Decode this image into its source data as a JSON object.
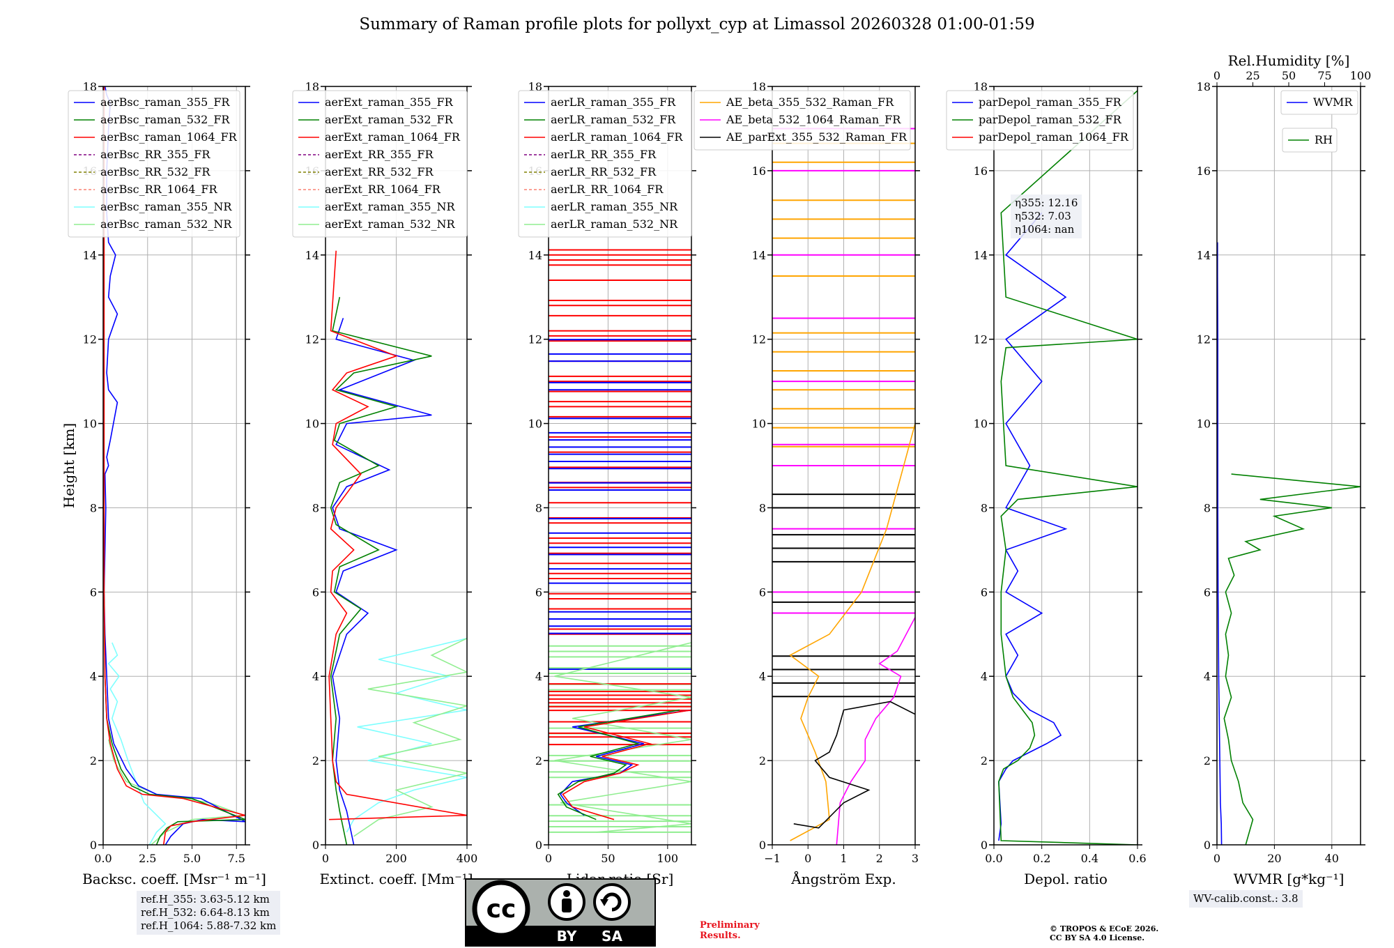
{
  "title": "Summary of Raman profile plots for pollyxt_cyp at Limassol 20260328 01:00-01:59",
  "height_label": "Height [km]",
  "ref_heights": [
    "ref.H_355: 3.63-5.12 km",
    "ref.H_532: 6.64-8.13 km",
    "ref.H_1064: 5.88-7.32 km"
  ],
  "wv_calib": "WV-calib.const.: 3.8",
  "eta": [
    "η355: 12.16",
    "η532: 7.03",
    "η1064: nan"
  ],
  "preliminary": [
    "Preliminary",
    "Results."
  ],
  "copyright": [
    "© TROPOS & ECoE 2026.",
    "CC BY SA 4.0 License."
  ],
  "license": {
    "cc": "cc",
    "by": "BY",
    "sa": "SA"
  },
  "colors": {
    "blue": "#0000ff",
    "green": "#008000",
    "red": "#ff0000",
    "purple": "#800080",
    "olive": "#808000",
    "salmon": "#fa8072",
    "cyan": "#7fffff",
    "lightgreen": "#90ee90",
    "orange": "#ffa500",
    "magenta": "#ff00ff",
    "black": "#000000"
  },
  "chart_data": [
    {
      "type": "line",
      "name": "backscatter",
      "xlabel": "Backsc. coeff. [Msr⁻¹ m⁻¹]",
      "ylabel": "Height [km]",
      "xlim": [
        0,
        8
      ],
      "ylim": [
        0,
        18
      ],
      "xticks": [
        "0.0",
        "2.5",
        "5.0",
        "7.5"
      ],
      "yticks": [
        "0",
        "2",
        "4",
        "6",
        "8",
        "10",
        "12",
        "14",
        "16",
        "18"
      ],
      "legend": [
        "aerBsc_raman_355_FR",
        "aerBsc_raman_532_FR",
        "aerBsc_raman_1064_FR",
        "aerBsc_RR_355_FR",
        "aerBsc_RR_532_FR",
        "aerBsc_RR_1064_FR",
        "aerBsc_raman_355_NR",
        "aerBsc_raman_532_NR"
      ],
      "series": [
        {
          "name": "aerBsc_raman_355_NR",
          "color": "cyan",
          "x": [
            2.6,
            3.0,
            3.5,
            2.3,
            1.4,
            1.0,
            0.5,
            0.8,
            0.4,
            0.9,
            0.3,
            0.8,
            0.5
          ],
          "y": [
            0.0,
            0.3,
            0.5,
            1.0,
            2.0,
            2.5,
            3.0,
            3.4,
            3.7,
            4.0,
            4.3,
            4.5,
            4.8
          ]
        },
        {
          "name": "aerBsc_raman_532_NR",
          "color": "lightgreen",
          "x": [
            2.7,
            3.5,
            5.0,
            7.9,
            6.0,
            3.0,
            1.3,
            0.6,
            0.3
          ],
          "y": [
            0.0,
            0.3,
            0.6,
            0.7,
            1.0,
            1.2,
            1.5,
            2.0,
            2.5
          ]
        },
        {
          "name": "aerBsc_raman_355_FR",
          "color": "blue",
          "x": [
            3.5,
            3.8,
            4.5,
            5.6,
            8.0,
            5.5,
            3.0,
            2.0,
            1.3,
            0.6,
            0.3,
            0.2,
            0.1,
            0.05,
            0.1,
            0.15,
            0.1,
            0.3,
            0.2,
            0.4,
            0.8,
            0.3,
            0.2,
            0.3,
            0.8,
            0.3,
            0.4,
            0.7,
            0.3,
            0.2,
            0.2,
            0.3,
            0.4,
            0.2,
            0.1
          ],
          "y": [
            0.0,
            0.2,
            0.5,
            0.6,
            0.55,
            1.1,
            1.2,
            1.4,
            1.8,
            2.4,
            3.0,
            4.0,
            5.0,
            6.0,
            7.0,
            8.0,
            8.8,
            9.0,
            9.2,
            9.6,
            10.5,
            10.8,
            11.2,
            12.0,
            12.6,
            13.0,
            13.5,
            14.0,
            14.3,
            15.0,
            16.0,
            17.0,
            17.6,
            17.8,
            18.0
          ]
        },
        {
          "name": "aerBsc_raman_532_FR",
          "color": "green",
          "x": [
            3.0,
            3.2,
            3.6,
            4.2,
            8.0,
            5.0,
            2.6,
            1.6,
            1.0,
            0.5,
            0.2,
            0.1,
            0.05,
            0.05,
            0.05
          ],
          "y": [
            0.0,
            0.2,
            0.4,
            0.55,
            0.6,
            1.1,
            1.2,
            1.4,
            1.8,
            2.4,
            3.0,
            4.0,
            6.0,
            10.0,
            18.0
          ]
        },
        {
          "name": "aerBsc_raman_1064_FR",
          "color": "red",
          "x": [
            3.4,
            3.5,
            3.8,
            5.0,
            8.0,
            4.5,
            2.2,
            1.3,
            0.8,
            0.4,
            0.2,
            0.1,
            0.05,
            0.05
          ],
          "y": [
            0.0,
            0.3,
            0.45,
            0.55,
            0.7,
            1.1,
            1.2,
            1.4,
            1.8,
            2.4,
            3.0,
            4.0,
            6.0,
            18.0
          ]
        }
      ]
    },
    {
      "type": "line",
      "name": "extinction",
      "xlabel": "Extinct. coeff. [Mm⁻¹]",
      "xlim": [
        0,
        400
      ],
      "ylim": [
        0,
        18
      ],
      "xticks": [
        "0",
        "200",
        "400"
      ],
      "yticks": [
        "0",
        "2",
        "4",
        "6",
        "8",
        "10",
        "12",
        "14",
        "16",
        "18"
      ],
      "legend": [
        "aerExt_raman_355_FR",
        "aerExt_raman_532_FR",
        "aerExt_raman_1064_FR",
        "aerExt_RR_355_FR",
        "aerExt_RR_532_FR",
        "aerExt_RR_1064_FR",
        "aerExt_raman_355_NR",
        "aerExt_raman_532_NR"
      ],
      "series": [
        {
          "name": "aerExt_raman_355_NR",
          "color": "cyan",
          "x": [
            60,
            80,
            150,
            250,
            400,
            120,
            300,
            90,
            400,
            200,
            350,
            150,
            400
          ],
          "y": [
            0.3,
            0.6,
            1.0,
            1.3,
            1.6,
            2.0,
            2.4,
            2.8,
            3.2,
            3.6,
            4.0,
            4.4,
            4.9
          ]
        },
        {
          "name": "aerExt_raman_532_NR",
          "color": "lightgreen",
          "x": [
            80,
            150,
            300,
            200,
            400,
            150,
            380,
            250,
            400,
            120,
            400,
            300,
            400
          ],
          "y": [
            0.2,
            0.6,
            0.9,
            1.3,
            1.7,
            2.1,
            2.5,
            2.9,
            3.3,
            3.7,
            4.1,
            4.5,
            4.9
          ]
        },
        {
          "name": "aerExt_raman_355_FR",
          "color": "blue",
          "x": [
            80,
            60,
            40,
            30,
            40,
            20,
            60,
            120,
            30,
            50,
            200,
            40,
            20,
            60,
            180,
            30,
            60,
            300,
            40,
            100,
            250,
            30,
            50
          ],
          "y": [
            0.0,
            0.8,
            1.3,
            2.0,
            3.0,
            4.0,
            5.0,
            5.5,
            6.0,
            6.5,
            7.0,
            7.5,
            8.0,
            8.5,
            8.9,
            9.5,
            10.0,
            10.2,
            10.8,
            11.0,
            11.5,
            12.0,
            12.5
          ]
        },
        {
          "name": "aerExt_raman_532_FR",
          "color": "green",
          "x": [
            60,
            40,
            30,
            20,
            30,
            15,
            40,
            100,
            25,
            40,
            150,
            30,
            15,
            40,
            150,
            25,
            40,
            200,
            30,
            80,
            300,
            20,
            40
          ],
          "y": [
            0.0,
            0.8,
            1.3,
            2.0,
            3.0,
            4.0,
            5.0,
            5.6,
            6.0,
            6.6,
            7.0,
            7.6,
            8.0,
            8.6,
            9.0,
            9.6,
            10.0,
            10.4,
            10.8,
            11.2,
            11.6,
            12.2,
            13.0
          ]
        },
        {
          "name": "aerExt_raman_1064_FR",
          "color": "red",
          "x": [
            10,
            400,
            60,
            30,
            20,
            15,
            10,
            30,
            60,
            15,
            20,
            80,
            15,
            30,
            100,
            20,
            30,
            120,
            20,
            60,
            200,
            15,
            30
          ],
          "y": [
            0.6,
            0.7,
            1.2,
            1.5,
            2.0,
            3.0,
            4.0,
            5.0,
            5.5,
            6.0,
            6.5,
            7.0,
            7.5,
            8.0,
            8.8,
            9.5,
            10.0,
            10.4,
            10.8,
            11.2,
            11.6,
            12.2,
            14.1
          ]
        }
      ]
    },
    {
      "type": "line",
      "name": "lidar_ratio",
      "xlabel": "Lidar ratio [Sr]",
      "xlim": [
        0,
        120
      ],
      "ylim": [
        0,
        18
      ],
      "xticks": [
        "0",
        "50",
        "100"
      ],
      "yticks": [
        "0",
        "2",
        "4",
        "6",
        "8",
        "10",
        "12",
        "14",
        "16",
        "18"
      ],
      "legend": [
        "aerLR_raman_355_FR",
        "aerLR_raman_532_FR",
        "aerLR_raman_1064_FR",
        "aerLR_RR_355_FR",
        "aerLR_RR_532_FR",
        "aerLR_RR_1064_FR",
        "aerLR_raman_355_NR",
        "aerLR_raman_532_NR"
      ],
      "series": [
        {
          "name": "aerLR_raman_532_NR",
          "color": "lightgreen",
          "x": [
            40,
            120,
            10,
            120,
            5,
            120,
            20,
            120,
            5,
            120
          ],
          "y": [
            0.3,
            0.5,
            1.0,
            1.5,
            2.0,
            2.5,
            3.0,
            3.5,
            4.0,
            4.8
          ]
        },
        {
          "name": "aerLR_raman_355_FR",
          "color": "blue",
          "x": [
            30,
            15,
            10,
            20,
            60,
            70,
            40,
            80,
            20,
            120
          ],
          "y": [
            0.7,
            1.0,
            1.2,
            1.5,
            1.7,
            1.9,
            2.1,
            2.4,
            2.8,
            3.2
          ]
        },
        {
          "name": "aerLR_raman_532_FR",
          "color": "green",
          "x": [
            40,
            15,
            8,
            25,
            55,
            65,
            35,
            75,
            25,
            110
          ],
          "y": [
            0.6,
            0.9,
            1.2,
            1.5,
            1.7,
            1.9,
            2.1,
            2.4,
            2.8,
            3.2
          ]
        },
        {
          "name": "aerLR_raman_1064_FR",
          "color": "red",
          "x": [
            55,
            20,
            12,
            30,
            60,
            75,
            45,
            85,
            30,
            120
          ],
          "y": [
            0.6,
            0.9,
            1.2,
            1.5,
            1.7,
            1.9,
            2.1,
            2.4,
            2.8,
            3.2
          ]
        }
      ]
    },
    {
      "type": "line",
      "name": "angstrom",
      "xlabel": "Ångström Exp.",
      "xlim": [
        -1,
        3
      ],
      "ylim": [
        0,
        18
      ],
      "xticks": [
        "−1",
        "0",
        "1",
        "2",
        "3"
      ],
      "yticks": [
        "0",
        "2",
        "4",
        "6",
        "8",
        "10",
        "12",
        "14",
        "16",
        "18"
      ],
      "legend": [
        "AE_beta_355_532_Raman_FR",
        "AE_beta_532_1064_Raman_FR",
        "AE_parExt_355_532_Raman_FR"
      ],
      "series": [
        {
          "name": "AE_beta_355_532_Raman_FR",
          "color": "orange",
          "x": [
            -0.5,
            0.6,
            0.5,
            0.2,
            0.0,
            -0.2,
            0.0,
            0.3,
            -0.5,
            0.6,
            1.5,
            2.2,
            3.0
          ],
          "y": [
            0.1,
            0.6,
            1.5,
            2.2,
            2.6,
            3.0,
            3.5,
            4.0,
            4.5,
            5.0,
            6.0,
            7.5,
            10.0
          ]
        },
        {
          "name": "AE_beta_532_1064_Raman_FR",
          "color": "magenta",
          "x": [
            0.8,
            0.9,
            1.2,
            1.6,
            1.6,
            1.9,
            2.4,
            2.6,
            2.0,
            2.5,
            3.0
          ],
          "y": [
            0.0,
            1.0,
            1.5,
            2.0,
            2.5,
            3.0,
            3.5,
            4.0,
            4.3,
            4.6,
            5.4
          ]
        },
        {
          "name": "AE_parExt_355_532_Raman_FR",
          "color": "black",
          "x": [
            -0.4,
            0.3,
            1.0,
            1.7,
            0.6,
            0.2,
            0.6,
            0.8,
            1.0,
            2.3,
            3.0
          ],
          "y": [
            0.5,
            0.4,
            1.0,
            1.3,
            1.6,
            2.0,
            2.2,
            2.6,
            3.2,
            3.4,
            3.1
          ]
        }
      ]
    },
    {
      "type": "line",
      "name": "depol",
      "xlabel": "Depol. ratio",
      "xlim": [
        0,
        0.6
      ],
      "ylim": [
        0,
        18
      ],
      "xticks": [
        "0.0",
        "0.2",
        "0.4",
        "0.6"
      ],
      "yticks": [
        "0",
        "2",
        "4",
        "6",
        "8",
        "10",
        "12",
        "14",
        "16",
        "18"
      ],
      "legend": [
        "parDepol_raman_355_FR",
        "parDepol_raman_532_FR",
        "parDepol_raman_1064_FR"
      ],
      "series": [
        {
          "name": "parDepol_raman_355_FR",
          "color": "blue",
          "x": [
            0.02,
            0.03,
            0.02,
            0.05,
            0.08,
            0.15,
            0.22,
            0.28,
            0.25,
            0.15,
            0.08,
            0.05,
            0.1,
            0.05,
            0.2,
            0.05,
            0.1,
            0.05,
            0.3,
            0.05,
            0.15,
            0.05,
            0.2,
            0.05,
            0.3,
            0.05,
            0.2
          ],
          "y": [
            0.1,
            0.5,
            1.5,
            1.8,
            2.0,
            2.2,
            2.4,
            2.6,
            2.9,
            3.2,
            3.6,
            4.0,
            4.5,
            5.0,
            5.5,
            6.0,
            6.5,
            7.0,
            7.5,
            8.0,
            9.0,
            10.0,
            11.0,
            12.0,
            13.0,
            14.0,
            15.0
          ]
        },
        {
          "name": "parDepol_raman_532_FR",
          "color": "green",
          "x": [
            0.6,
            0.03,
            0.02,
            0.04,
            0.1,
            0.15,
            0.17,
            0.16,
            0.12,
            0.08,
            0.05,
            0.03,
            0.03,
            0.05,
            0.03,
            0.1,
            0.6,
            0.05,
            0.04,
            0.03,
            0.05,
            0.6,
            0.05,
            0.03,
            0.6
          ],
          "y": [
            0.0,
            0.1,
            1.5,
            1.8,
            2.0,
            2.3,
            2.6,
            2.9,
            3.2,
            3.5,
            4.0,
            5.0,
            6.0,
            7.0,
            7.8,
            8.2,
            8.5,
            9.0,
            10.0,
            11.0,
            11.8,
            12.0,
            13.0,
            15.0,
            17.9
          ]
        }
      ]
    },
    {
      "type": "line",
      "name": "wv",
      "xlabel": "WVMR [g*kg⁻¹]",
      "xlim": [
        0,
        50
      ],
      "ylim": [
        0,
        18
      ],
      "xticks": [
        "0",
        "20",
        "40"
      ],
      "yticks": [
        "0",
        "2",
        "4",
        "6",
        "8",
        "10",
        "12",
        "14",
        "16",
        "18"
      ],
      "x2label": "Rel.Humidity [%]",
      "x2lim": [
        0,
        100
      ],
      "x2ticks": [
        "0",
        "25",
        "50",
        "75",
        "100"
      ],
      "legend": [
        "WVMR",
        "RH"
      ],
      "series": [
        {
          "name": "WVMR",
          "color": "blue",
          "axis": "bottom",
          "x": [
            1.6,
            1.5,
            1.2,
            1.0,
            0.8,
            0.6,
            0.5,
            0.4,
            0.3,
            0.3,
            0.3,
            0.2,
            0.2
          ],
          "y": [
            0.0,
            0.5,
            1.0,
            2.0,
            3.0,
            4.0,
            5.0,
            6.0,
            8.0,
            10.0,
            12.0,
            13.5,
            14.3
          ]
        },
        {
          "name": "RH",
          "color": "green",
          "axis": "top",
          "x": [
            20,
            25,
            18,
            15,
            10,
            8,
            5,
            10,
            6,
            8,
            6,
            10,
            6,
            12,
            8,
            30,
            20,
            60,
            40,
            80,
            30,
            100,
            10
          ],
          "y": [
            0.0,
            0.6,
            1.0,
            1.5,
            2.0,
            2.5,
            3.0,
            3.5,
            4.0,
            4.5,
            5.0,
            5.5,
            6.0,
            6.4,
            6.8,
            7.0,
            7.2,
            7.5,
            7.8,
            8.0,
            8.2,
            8.5,
            8.8
          ]
        }
      ]
    }
  ]
}
